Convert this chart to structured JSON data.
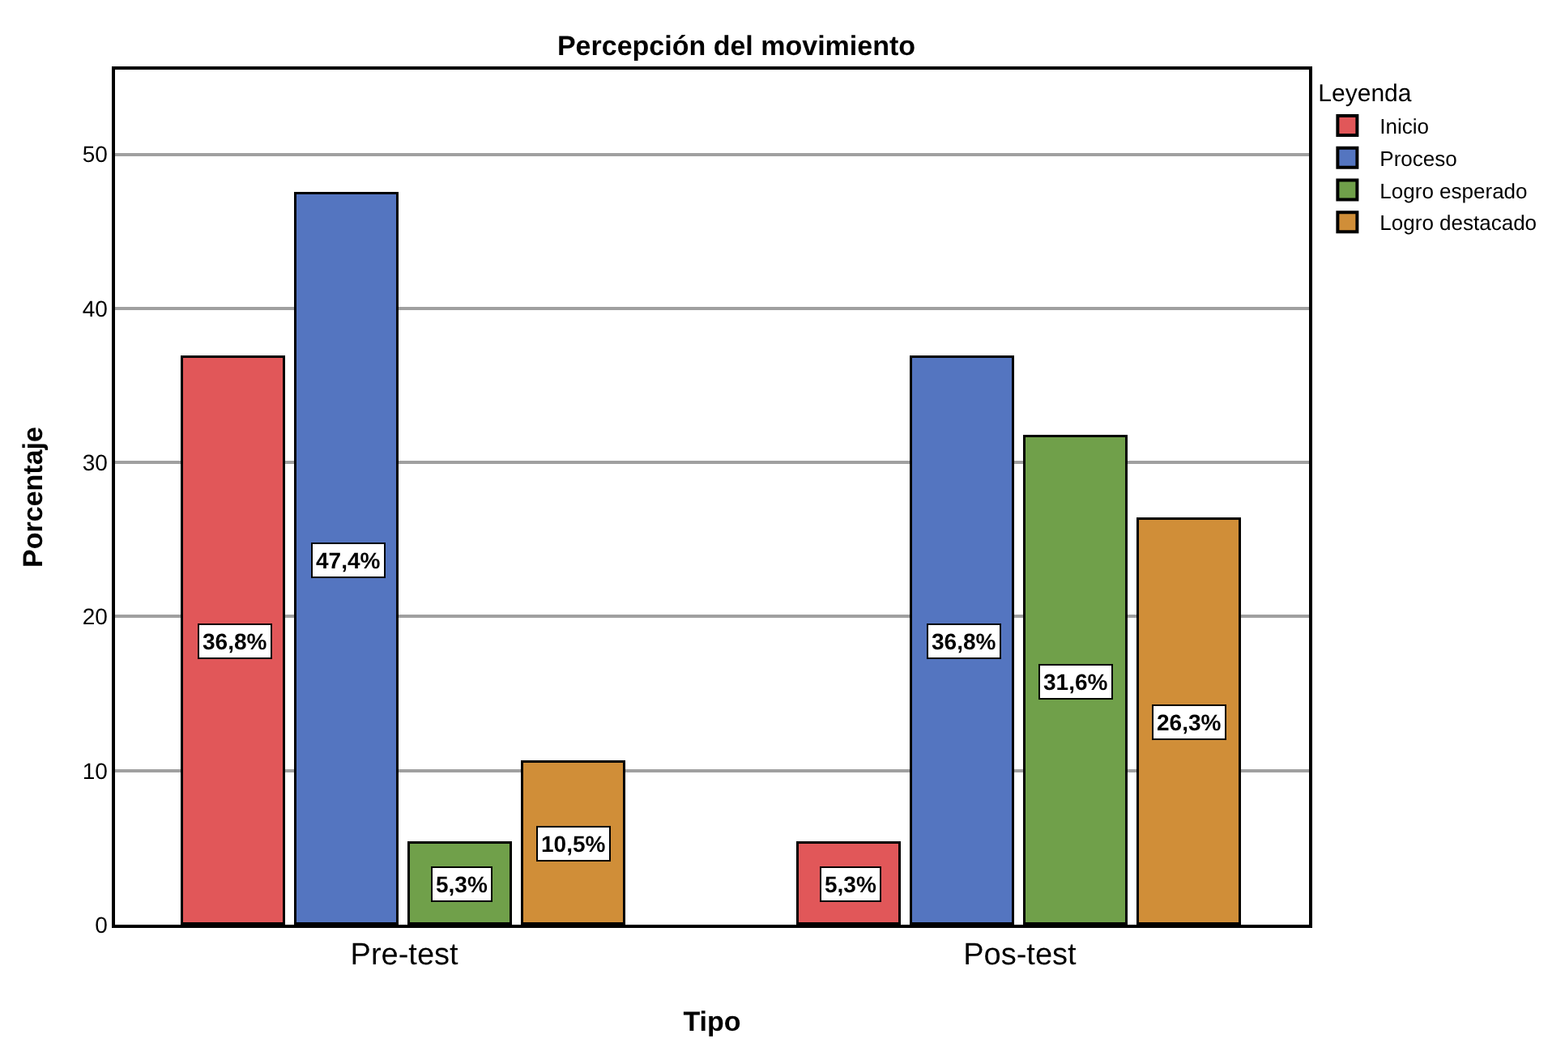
{
  "chart_data": {
    "type": "bar",
    "title": "Percepción del movimiento",
    "xlabel": "Tipo",
    "ylabel": "Porcentaje",
    "legend_title": "Leyenda",
    "categories": [
      "Pre-test",
      "Pos-test"
    ],
    "series": [
      {
        "name": "Inicio",
        "color": "#e15759",
        "values": [
          36.8,
          5.3
        ],
        "value_labels": [
          "36,8%",
          "5,3%"
        ]
      },
      {
        "name": "Proceso",
        "color": "#5475c0",
        "values": [
          47.4,
          36.8
        ],
        "value_labels": [
          "47,4%",
          "36,8%"
        ]
      },
      {
        "name": "Logro esperado",
        "color": "#70a04a",
        "values": [
          5.3,
          31.6
        ],
        "value_labels": [
          "5,3%",
          "31,6%"
        ]
      },
      {
        "name": "Logro destacado",
        "color": "#d08e38",
        "values": [
          10.5,
          26.3
        ],
        "value_labels": [
          "10,5%",
          "26,3%"
        ]
      }
    ],
    "ylim": [
      0,
      55.5
    ],
    "yticks": [
      0,
      10,
      20,
      30,
      40,
      50
    ],
    "grid": "y",
    "legend": "top right"
  }
}
